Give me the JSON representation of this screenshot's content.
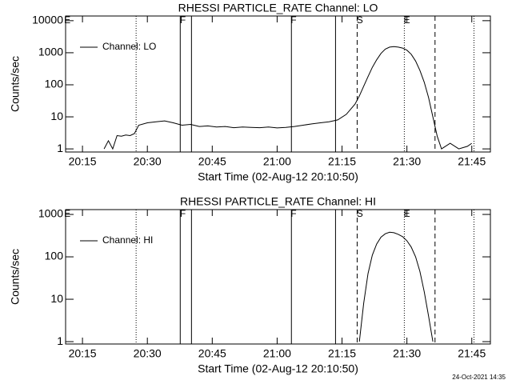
{
  "chart_data": [
    {
      "type": "line",
      "title": "RHESSI PARTICLE_RATE Channel: LO",
      "xlabel": "Start Time (02-Aug-12 20:10:50)",
      "ylabel": "Counts/sec",
      "log_y": true,
      "legend": "upper left",
      "color": "#000000",
      "xlim": [
        11.1,
        109.3
      ],
      "ylim": [
        0.8,
        14000
      ],
      "xticks": [
        {
          "value": 15,
          "label": "20:15"
        },
        {
          "value": 30,
          "label": "20:30"
        },
        {
          "value": 45,
          "label": "20:45"
        },
        {
          "value": 60,
          "label": "21:00"
        },
        {
          "value": 75,
          "label": "21:15"
        },
        {
          "value": 90,
          "label": "21:30"
        },
        {
          "value": 105,
          "label": "21:45"
        }
      ],
      "yticks": [
        1,
        10,
        100,
        1000,
        10000
      ],
      "markers": [
        {
          "x": 27.4,
          "style": "dotted"
        },
        {
          "x": 37.6,
          "style": "solid"
        },
        {
          "x": 40.2,
          "style": "solid"
        },
        {
          "x": 63.3,
          "style": "solid"
        },
        {
          "x": 73.5,
          "style": "solid"
        },
        {
          "x": 78.5,
          "style": "dashed"
        },
        {
          "x": 89.4,
          "style": "dotted"
        },
        {
          "x": 96.5,
          "style": "dashed"
        },
        {
          "x": 105.5,
          "style": "dotted"
        }
      ],
      "annotations": [
        {
          "text": "E",
          "x": 11.5
        },
        {
          "text": "F",
          "x": 38.2
        },
        {
          "text": "F",
          "x": 63.8
        },
        {
          "text": "S",
          "x": 79.1
        },
        {
          "text": "E",
          "x": 90.0
        }
      ],
      "series": [
        {
          "name": "Channel: LO",
          "color": "#000000",
          "x": [
            20,
            21,
            22,
            23,
            24,
            25,
            26,
            27,
            28,
            30,
            32,
            34,
            36,
            38,
            40,
            42,
            44,
            46,
            48,
            50,
            52,
            54,
            56,
            58,
            60,
            62,
            64,
            66,
            68,
            70,
            72,
            74,
            76,
            78,
            79,
            80,
            81,
            82,
            83,
            84,
            85,
            86,
            87,
            88,
            89,
            90,
            91,
            92,
            93,
            94,
            95,
            96,
            97,
            98,
            100,
            102,
            104,
            105
          ],
          "values": [
            1,
            1.8,
            1,
            2.6,
            2.5,
            2.7,
            2.6,
            3,
            5.5,
            6.5,
            7,
            7.5,
            6.5,
            5.5,
            5.8,
            5,
            5.2,
            4.8,
            5,
            4.6,
            4.8,
            4.7,
            4.6,
            4.8,
            4.5,
            4.7,
            5,
            5.5,
            6,
            6.5,
            7,
            8,
            12,
            25,
            45,
            90,
            180,
            350,
            600,
            950,
            1300,
            1500,
            1550,
            1500,
            1400,
            1200,
            900,
            550,
            280,
            120,
            40,
            10,
            2.5,
            1,
            1.5,
            1,
            1.2,
            1.5
          ]
        }
      ]
    },
    {
      "type": "line",
      "title": "RHESSI PARTICLE_RATE Channel: HI",
      "xlabel": "Start Time (02-Aug-12 20:10:50)",
      "ylabel": "Counts/sec",
      "log_y": true,
      "legend": "upper left",
      "color": "#000000",
      "xlim": [
        11.1,
        109.3
      ],
      "ylim": [
        0.88,
        1300
      ],
      "xticks": [
        {
          "value": 15,
          "label": "20:15"
        },
        {
          "value": 30,
          "label": "20:30"
        },
        {
          "value": 45,
          "label": "20:45"
        },
        {
          "value": 60,
          "label": "21:00"
        },
        {
          "value": 75,
          "label": "21:15"
        },
        {
          "value": 90,
          "label": "21:30"
        },
        {
          "value": 105,
          "label": "21:45"
        }
      ],
      "yticks": [
        1,
        10,
        100,
        1000
      ],
      "markers": [
        {
          "x": 27.4,
          "style": "dotted"
        },
        {
          "x": 37.6,
          "style": "solid"
        },
        {
          "x": 40.2,
          "style": "solid"
        },
        {
          "x": 63.3,
          "style": "solid"
        },
        {
          "x": 73.5,
          "style": "solid"
        },
        {
          "x": 78.5,
          "style": "dashed"
        },
        {
          "x": 89.4,
          "style": "dotted"
        },
        {
          "x": 96.5,
          "style": "dashed"
        },
        {
          "x": 105.5,
          "style": "dotted"
        }
      ],
      "annotations": [
        {
          "text": "E",
          "x": 11.5
        },
        {
          "text": "F",
          "x": 38.2
        },
        {
          "text": "F",
          "x": 63.8
        },
        {
          "text": "S",
          "x": 79.1
        },
        {
          "text": "E",
          "x": 90.0
        }
      ],
      "series": [
        {
          "name": "Channel: HI",
          "color": "#000000",
          "x": [
            79,
            80,
            81,
            82,
            83,
            84,
            85,
            86,
            87,
            88,
            89,
            90,
            91,
            92,
            93,
            94,
            95,
            96
          ],
          "values": [
            1,
            8,
            40,
            110,
            200,
            290,
            350,
            380,
            370,
            340,
            300,
            240,
            170,
            100,
            45,
            15,
            4,
            1
          ]
        }
      ]
    }
  ],
  "footer": "24-Oct-2021 14:35"
}
